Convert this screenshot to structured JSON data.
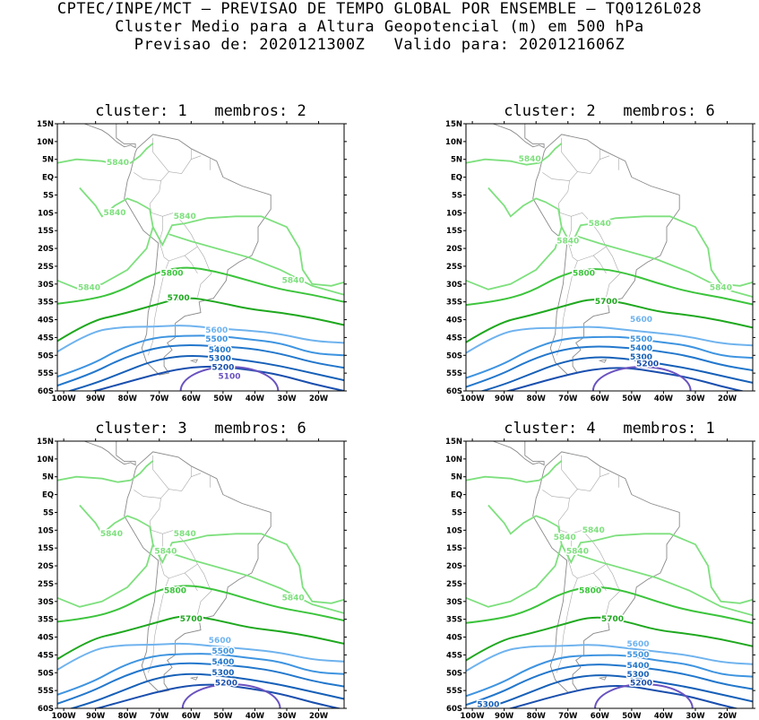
{
  "header": {
    "line1": "CPTEC/INPE/MCT – PREVISAO DE TEMPO GLOBAL POR ENSEMBLE – TQ0126L028",
    "line2": "Cluster Medio para a Altura Geopotencial (m) em 500 hPa",
    "line3": "Previsao de: 2020121300Z   Valido para: 2020121606Z"
  },
  "axes": {
    "lat_labels": [
      "15N",
      "10N",
      "5N",
      "EQ",
      "5S",
      "10S",
      "15S",
      "20S",
      "25S",
      "30S",
      "35S",
      "40S",
      "45S",
      "50S",
      "55S",
      "60S"
    ],
    "lon_labels": [
      "100W",
      "90W",
      "80W",
      "70W",
      "60W",
      "50W",
      "40W",
      "30W",
      "20W"
    ]
  },
  "level_colors": {
    "5840": "#7ee07e",
    "5800": "#3cc43c",
    "5700": "#1fa81f",
    "5600": "#6fb3ee",
    "5500": "#3e94e0",
    "5400": "#2277cc",
    "5300": "#1660b8",
    "5200": "#1a4fae",
    "5100": "#6a52c0"
  },
  "panels": [
    {
      "title": "cluster: 1   membros: 2",
      "labels": [
        {
          "text": "5840",
          "lon": -83,
          "lat": 4
        },
        {
          "text": "5840",
          "lon": -84,
          "lat": -10
        },
        {
          "text": "5840",
          "lon": -62,
          "lat": -11
        },
        {
          "text": "5840",
          "lon": -28,
          "lat": -29
        },
        {
          "text": "5840",
          "lon": -92,
          "lat": -31
        },
        {
          "text": "5800",
          "lon": -66,
          "lat": -27
        },
        {
          "text": "5700",
          "lon": -64,
          "lat": -34
        },
        {
          "text": "5600",
          "lon": -52,
          "lat": -43
        },
        {
          "text": "5500",
          "lon": -52,
          "lat": -45.5
        },
        {
          "text": "5400",
          "lon": -51,
          "lat": -48.5
        },
        {
          "text": "5300",
          "lon": -51,
          "lat": -51
        },
        {
          "text": "5200",
          "lon": -50,
          "lat": -53.5
        },
        {
          "text": "5100",
          "lon": -48,
          "lat": -56
        }
      ]
    },
    {
      "title": "cluster: 2   membros: 6",
      "labels": [
        {
          "text": "5840",
          "lon": -82,
          "lat": 5
        },
        {
          "text": "5840",
          "lon": -60,
          "lat": -13
        },
        {
          "text": "5840",
          "lon": -70,
          "lat": -18
        },
        {
          "text": "5840",
          "lon": -22,
          "lat": -31
        },
        {
          "text": "5800",
          "lon": -65,
          "lat": -27
        },
        {
          "text": "5700",
          "lon": -58,
          "lat": -35
        },
        {
          "text": "5600",
          "lon": -47,
          "lat": -40
        },
        {
          "text": "5500",
          "lon": -47,
          "lat": -45.5
        },
        {
          "text": "5400",
          "lon": -47,
          "lat": -48
        },
        {
          "text": "5300",
          "lon": -47,
          "lat": -50.5
        },
        {
          "text": "5200",
          "lon": -45,
          "lat": -52.5
        }
      ]
    },
    {
      "title": "cluster: 3   membros: 6",
      "labels": [
        {
          "text": "5840",
          "lon": -85,
          "lat": -11
        },
        {
          "text": "5840",
          "lon": -62,
          "lat": -11
        },
        {
          "text": "5840",
          "lon": -68,
          "lat": -16
        },
        {
          "text": "5840",
          "lon": -28,
          "lat": -29
        },
        {
          "text": "5800",
          "lon": -65,
          "lat": -27
        },
        {
          "text": "5700",
          "lon": -60,
          "lat": -35
        },
        {
          "text": "5600",
          "lon": -51,
          "lat": -41
        },
        {
          "text": "5500",
          "lon": -50,
          "lat": -44
        },
        {
          "text": "5400",
          "lon": -50,
          "lat": -47
        },
        {
          "text": "5300",
          "lon": -50,
          "lat": -50
        },
        {
          "text": "5200",
          "lon": -49,
          "lat": -53
        }
      ]
    },
    {
      "title": "cluster: 4   membros: 1",
      "labels": [
        {
          "text": "5840",
          "lon": -71,
          "lat": -12
        },
        {
          "text": "5840",
          "lon": -62,
          "lat": -10
        },
        {
          "text": "5840",
          "lon": -67,
          "lat": -16
        },
        {
          "text": "5800",
          "lon": -63,
          "lat": -27
        },
        {
          "text": "5700",
          "lon": -56,
          "lat": -35
        },
        {
          "text": "5600",
          "lon": -48,
          "lat": -42
        },
        {
          "text": "5500",
          "lon": -48,
          "lat": -45
        },
        {
          "text": "5400",
          "lon": -48,
          "lat": -48
        },
        {
          "text": "5300",
          "lon": -48,
          "lat": -50.5
        },
        {
          "text": "5200",
          "lon": -47,
          "lat": -53
        },
        {
          "text": "5300",
          "lon": -95,
          "lat": -59
        }
      ]
    }
  ]
}
